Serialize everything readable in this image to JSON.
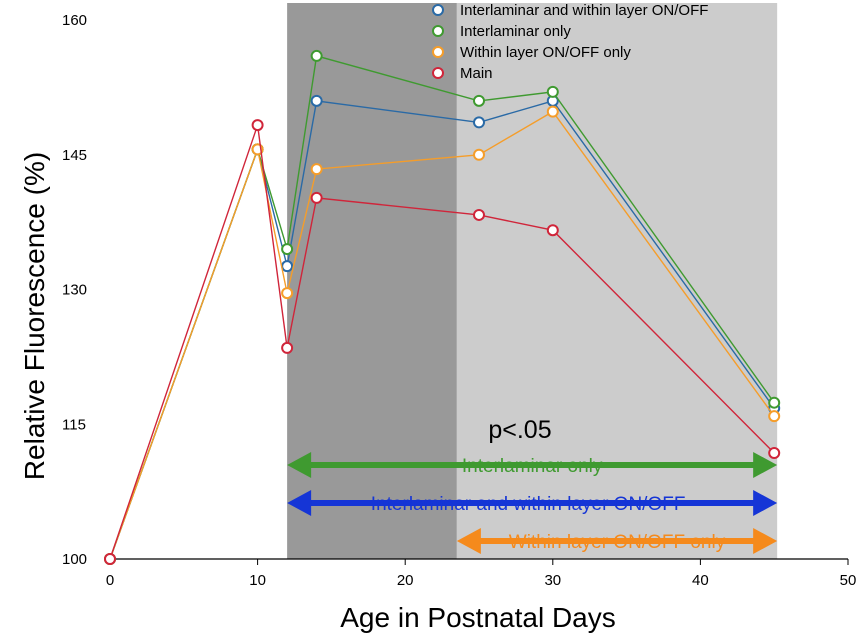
{
  "chart_data": {
    "type": "line",
    "xlabel": "Age in Postnatal Days",
    "ylabel": "Relative Fluorescence (%)",
    "xlim": [
      0,
      50
    ],
    "ylim": [
      100,
      160
    ],
    "x_ticks": [
      0,
      10,
      20,
      30,
      40,
      50
    ],
    "y_ticks": [
      100,
      115,
      130,
      145,
      160
    ],
    "grid": false,
    "legend_position": "top-right",
    "shaded_regions": [
      {
        "x_start": 12,
        "x_end": 23.5,
        "color": "#999999"
      },
      {
        "x_start": 23.5,
        "x_end": 45.2,
        "color": "#cccccc"
      }
    ],
    "series": [
      {
        "name": "Interlaminar and within layer ON/OFF",
        "color": "#2a6aa6",
        "x": [
          0,
          10,
          12,
          14,
          25,
          30,
          45
        ],
        "y": [
          100,
          145.6,
          132.6,
          151.0,
          148.6,
          151.0,
          116.8
        ]
      },
      {
        "name": "Interlaminar only",
        "color": "#3f9a30",
        "x": [
          0,
          10,
          12,
          14,
          25,
          30,
          45
        ],
        "y": [
          100,
          145.6,
          134.5,
          156.0,
          151.0,
          152.0,
          117.4
        ]
      },
      {
        "name": "Within layer ON/OFF only",
        "color": "#f59d2a",
        "x": [
          0,
          10,
          12,
          14,
          25,
          30,
          45
        ],
        "y": [
          100,
          145.6,
          129.6,
          143.4,
          145.0,
          149.8,
          115.9
        ]
      },
      {
        "name": "Main",
        "color": "#d0253a",
        "x": [
          0,
          10,
          12,
          14,
          25,
          30,
          45
        ],
        "y": [
          100,
          148.3,
          123.5,
          140.2,
          138.3,
          136.6,
          111.8
        ]
      }
    ],
    "annotations": {
      "significance": "p<.05",
      "arrows": [
        {
          "label": "Interlaminar only",
          "x_start": 12,
          "x_end": 45.2,
          "color": "#3f9a30"
        },
        {
          "label": "Interlaminar and within layer ON/OFF",
          "x_start": 12,
          "x_end": 45.2,
          "color": "#1535d6"
        },
        {
          "label": "Within layer ON/OFF only",
          "x_start": 23.5,
          "x_end": 45.2,
          "color": "#f58a1c"
        }
      ]
    }
  }
}
